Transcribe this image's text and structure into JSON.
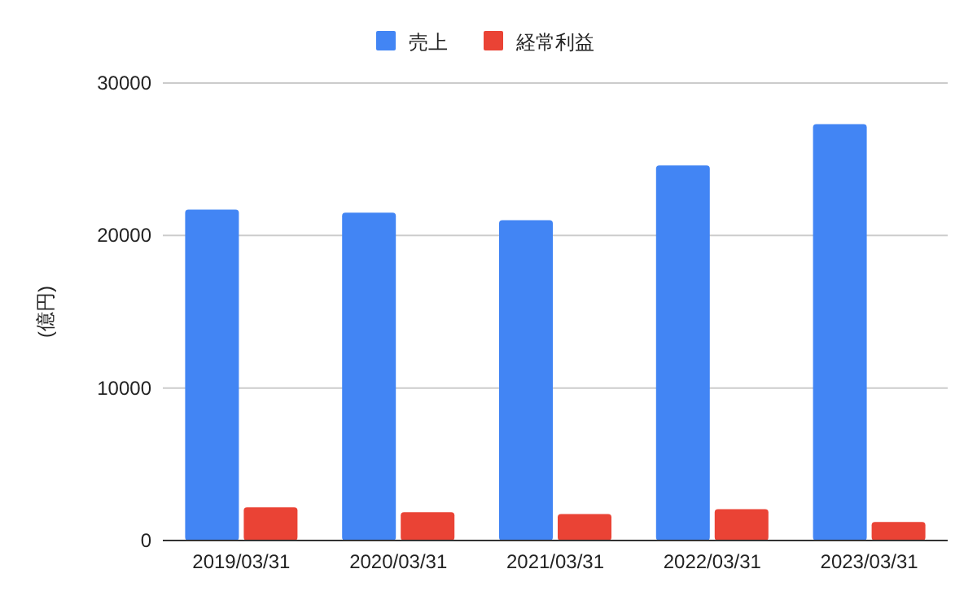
{
  "chart_data": {
    "type": "bar",
    "ylabel": "(億円)",
    "categories": [
      "2019/03/31",
      "2020/03/31",
      "2021/03/31",
      "2022/03/31",
      "2023/03/31"
    ],
    "series": [
      {
        "name": "売上",
        "color": "#4285f4",
        "values": [
          21700,
          21500,
          21000,
          24600,
          27300
        ]
      },
      {
        "name": "経常利益",
        "color": "#ea4335",
        "values": [
          2170,
          1850,
          1740,
          2060,
          1210
        ]
      }
    ],
    "ylim": [
      0,
      30000
    ],
    "yticks": [
      0,
      10000,
      20000,
      30000
    ],
    "grid": "y",
    "legend": "top"
  }
}
